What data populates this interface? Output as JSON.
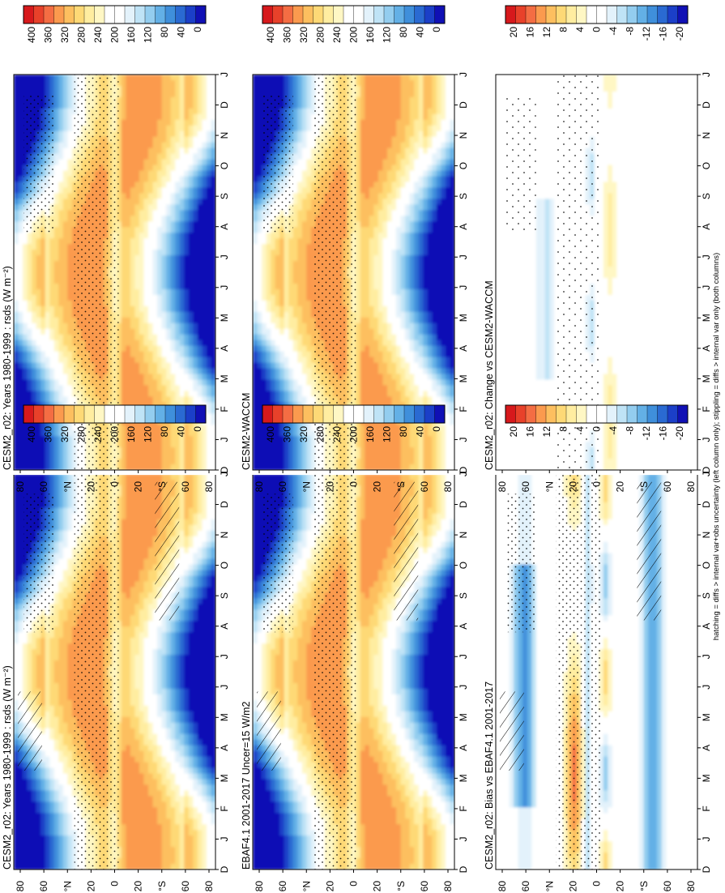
{
  "figure": {
    "footnote": "hatching = diffs > internal var+obs uncertainty (left column only); stippling = diffs > internal var only (both columns)"
  },
  "colorbars": {
    "abs": {
      "ticks": [
        "400",
        "360",
        "320",
        "280",
        "240",
        "200",
        "160",
        "120",
        "80",
        "40",
        "0"
      ]
    },
    "diff": {
      "ticks": [
        "20",
        "16",
        "12",
        "8",
        "4",
        "0",
        "-4",
        "-8",
        "-12",
        "-16",
        "-20"
      ]
    }
  },
  "axes": {
    "months": [
      "D",
      "J",
      "F",
      "M",
      "A",
      "M",
      "J",
      "J",
      "A",
      "S",
      "O",
      "N",
      "D",
      "J"
    ],
    "lat_ticks": [
      "80",
      "60",
      "°N",
      "20",
      "0",
      "20",
      "°S",
      "60",
      "80"
    ]
  },
  "colors": {
    "abs_scale": [
      "#d7191c",
      "#e8412a",
      "#f46d43",
      "#fb9a4e",
      "#fdbf5f",
      "#fed976",
      "#ffeda0",
      "#fff7c4",
      "#ffffff",
      "#ffffff",
      "#e3f2fb",
      "#bfe3f6",
      "#93cdef",
      "#63b0e6",
      "#3f8fdb",
      "#2a6ad2",
      "#1b3fc8",
      "#1010b5"
    ],
    "diff_scale": [
      "#d7191c",
      "#e8412a",
      "#f46d43",
      "#fb9a4e",
      "#fdbf5f",
      "#fed976",
      "#ffeda0",
      "#fff7c4",
      "#ffffff",
      "#ffffff",
      "#e3f2fb",
      "#bfe3f6",
      "#93cdef",
      "#63b0e6",
      "#3f8fdb",
      "#2a6ad2",
      "#1b3fc8",
      "#1010b5"
    ]
  },
  "chart_data": [
    {
      "type": "heatmap",
      "title": "CESM2_r02: Years 1980-1999 : rsds (W m⁻²)",
      "xlabel": "",
      "ylabel": "",
      "x_ticks": [
        "D",
        "J",
        "F",
        "M",
        "A",
        "M",
        "J",
        "J",
        "A",
        "S",
        "O",
        "N",
        "D",
        "J"
      ],
      "y_ticks": [
        "80",
        "60",
        "°N",
        "20",
        "0",
        "20",
        "°S",
        "60",
        "80"
      ],
      "colorbar": "abs",
      "zlim": [
        0,
        400
      ],
      "field": "abs",
      "hatching": true,
      "stippling": true
    },
    {
      "type": "heatmap",
      "title": "EBAF4.1 2001-2017 Uncer=15 W/m2",
      "x_ticks": [
        "D",
        "J",
        "F",
        "M",
        "A",
        "M",
        "J",
        "J",
        "A",
        "S",
        "O",
        "N",
        "D",
        "J"
      ],
      "y_ticks": [
        "80",
        "60",
        "°N",
        "20",
        "0",
        "20",
        "°S",
        "60",
        "80"
      ],
      "colorbar": "abs",
      "zlim": [
        0,
        400
      ],
      "field": "abs",
      "hatching": true,
      "stippling": true
    },
    {
      "type": "heatmap",
      "title": "CESM2_r02: Bias vs EBAF4.1 2001-2017",
      "x_ticks": [
        "D",
        "J",
        "F",
        "M",
        "A",
        "M",
        "J",
        "J",
        "A",
        "S",
        "O",
        "N",
        "D",
        "J"
      ],
      "y_ticks": [
        "80",
        "60",
        "°N",
        "20",
        "0",
        "20",
        "°S",
        "60",
        "80"
      ],
      "colorbar": "diff",
      "zlim": [
        -20,
        20
      ],
      "field": "bias",
      "hatching": true,
      "stippling": true
    },
    {
      "type": "heatmap",
      "title": "CESM2_r02: Years 1980-1999 : rsds (W m⁻²)",
      "x_ticks": [
        "D",
        "J",
        "F",
        "M",
        "A",
        "M",
        "J",
        "J",
        "A",
        "S",
        "O",
        "N",
        "D",
        "J"
      ],
      "y_ticks": [
        "80",
        "60",
        "°N",
        "20",
        "0",
        "20",
        "°S",
        "60",
        "80"
      ],
      "colorbar": "abs",
      "zlim": [
        0,
        400
      ],
      "field": "abs",
      "hatching": false,
      "stippling": true
    },
    {
      "type": "heatmap",
      "title": "CESM2-WACCM",
      "x_ticks": [
        "D",
        "J",
        "F",
        "M",
        "A",
        "M",
        "J",
        "J",
        "A",
        "S",
        "O",
        "N",
        "D",
        "J"
      ],
      "y_ticks": [
        "80",
        "60",
        "°N",
        "20",
        "0",
        "20",
        "°S",
        "60",
        "80"
      ],
      "colorbar": "abs",
      "zlim": [
        0,
        400
      ],
      "field": "abs",
      "hatching": false,
      "stippling": true
    },
    {
      "type": "heatmap",
      "title": "CESM2_r02: Change vs CESM2-WACCM",
      "x_ticks": [
        "D",
        "J",
        "F",
        "M",
        "A",
        "M",
        "J",
        "J",
        "A",
        "S",
        "O",
        "N",
        "D",
        "J"
      ],
      "y_ticks": [
        "80",
        "60",
        "°N",
        "20",
        "0",
        "20",
        "°S",
        "60",
        "80"
      ],
      "colorbar": "diff",
      "zlim": [
        -20,
        20
      ],
      "field": "change",
      "hatching": false,
      "stippling": true
    }
  ]
}
